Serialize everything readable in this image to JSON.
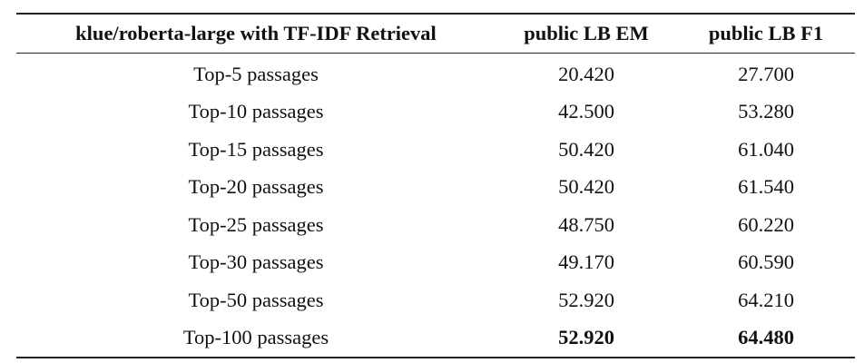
{
  "table": {
    "headers": [
      "klue/roberta-large with TF-IDF Retrieval",
      "public LB EM",
      "public LB F1"
    ],
    "rows": [
      {
        "label": "Top-5 passages",
        "em": "20.420",
        "f1": "27.700"
      },
      {
        "label": "Top-10 passages",
        "em": "42.500",
        "f1": "53.280"
      },
      {
        "label": "Top-15 passages",
        "em": "50.420",
        "f1": "61.040"
      },
      {
        "label": "Top-20 passages",
        "em": "50.420",
        "f1": "61.540"
      },
      {
        "label": "Top-25 passages",
        "em": "48.750",
        "f1": "60.220"
      },
      {
        "label": "Top-30 passages",
        "em": "49.170",
        "f1": "60.590"
      },
      {
        "label": "Top-50 passages",
        "em": "52.920",
        "f1": "64.210"
      },
      {
        "label": "Top-100 passages",
        "em": "52.920",
        "f1": "64.480"
      }
    ]
  }
}
